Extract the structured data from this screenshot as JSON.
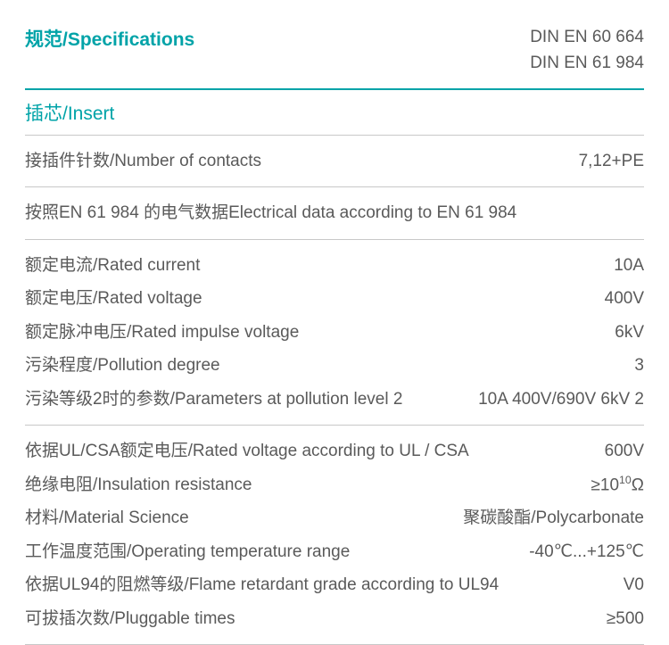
{
  "header": {
    "title": "规范/Specifications",
    "standards": [
      "DIN EN 60 664",
      "DIN EN 61 984"
    ]
  },
  "section": {
    "title": "插芯/Insert"
  },
  "group1": {
    "contacts_label": "接插件针数/Number of contacts",
    "contacts_value": "7,12+PE"
  },
  "note_en61984": "按照EN 61 984 的电气数据Electrical data according to EN 61 984",
  "group2": {
    "rated_current_label": "额定电流/Rated current",
    "rated_current_value": "10A",
    "rated_voltage_label": "额定电压/Rated voltage",
    "rated_voltage_value": "400V",
    "rated_impulse_label": "额定脉冲电压/Rated impulse voltage",
    "rated_impulse_value": "6kV",
    "pollution_degree_label": "污染程度/Pollution degree",
    "pollution_degree_value": "3",
    "pl2_params_label": "污染等级2时的参数/Parameters at pollution level 2",
    "pl2_params_value": "10A 400V/690V 6kV 2"
  },
  "group3": {
    "ul_csa_voltage_label": "依据UL/CSA额定电压/Rated voltage according to UL / CSA",
    "ul_csa_voltage_value": "600V",
    "insulation_label": "绝缘电阻/Insulation resistance",
    "insulation_prefix": "≥10",
    "insulation_exp": "10",
    "insulation_unit": "Ω",
    "material_label": "材料/Material Science",
    "material_value": "聚碳酸酯/Polycarbonate",
    "temp_range_label": "工作温度范围/Operating temperature range",
    "temp_range_value": "-40℃...+125℃",
    "flame_label": "依据UL94的阻燃等级/Flame retardant grade according to UL94",
    "flame_value": "V0",
    "pluggable_label": "可拔插次数/Pluggable times",
    "pluggable_value": "≥500"
  },
  "colors": {
    "accent": "#00a3a8",
    "text": "#5a5a5a",
    "rule": "#c8c8c8",
    "background": "#ffffff"
  },
  "typography": {
    "title_fontsize": 21,
    "body_fontsize": 19
  }
}
